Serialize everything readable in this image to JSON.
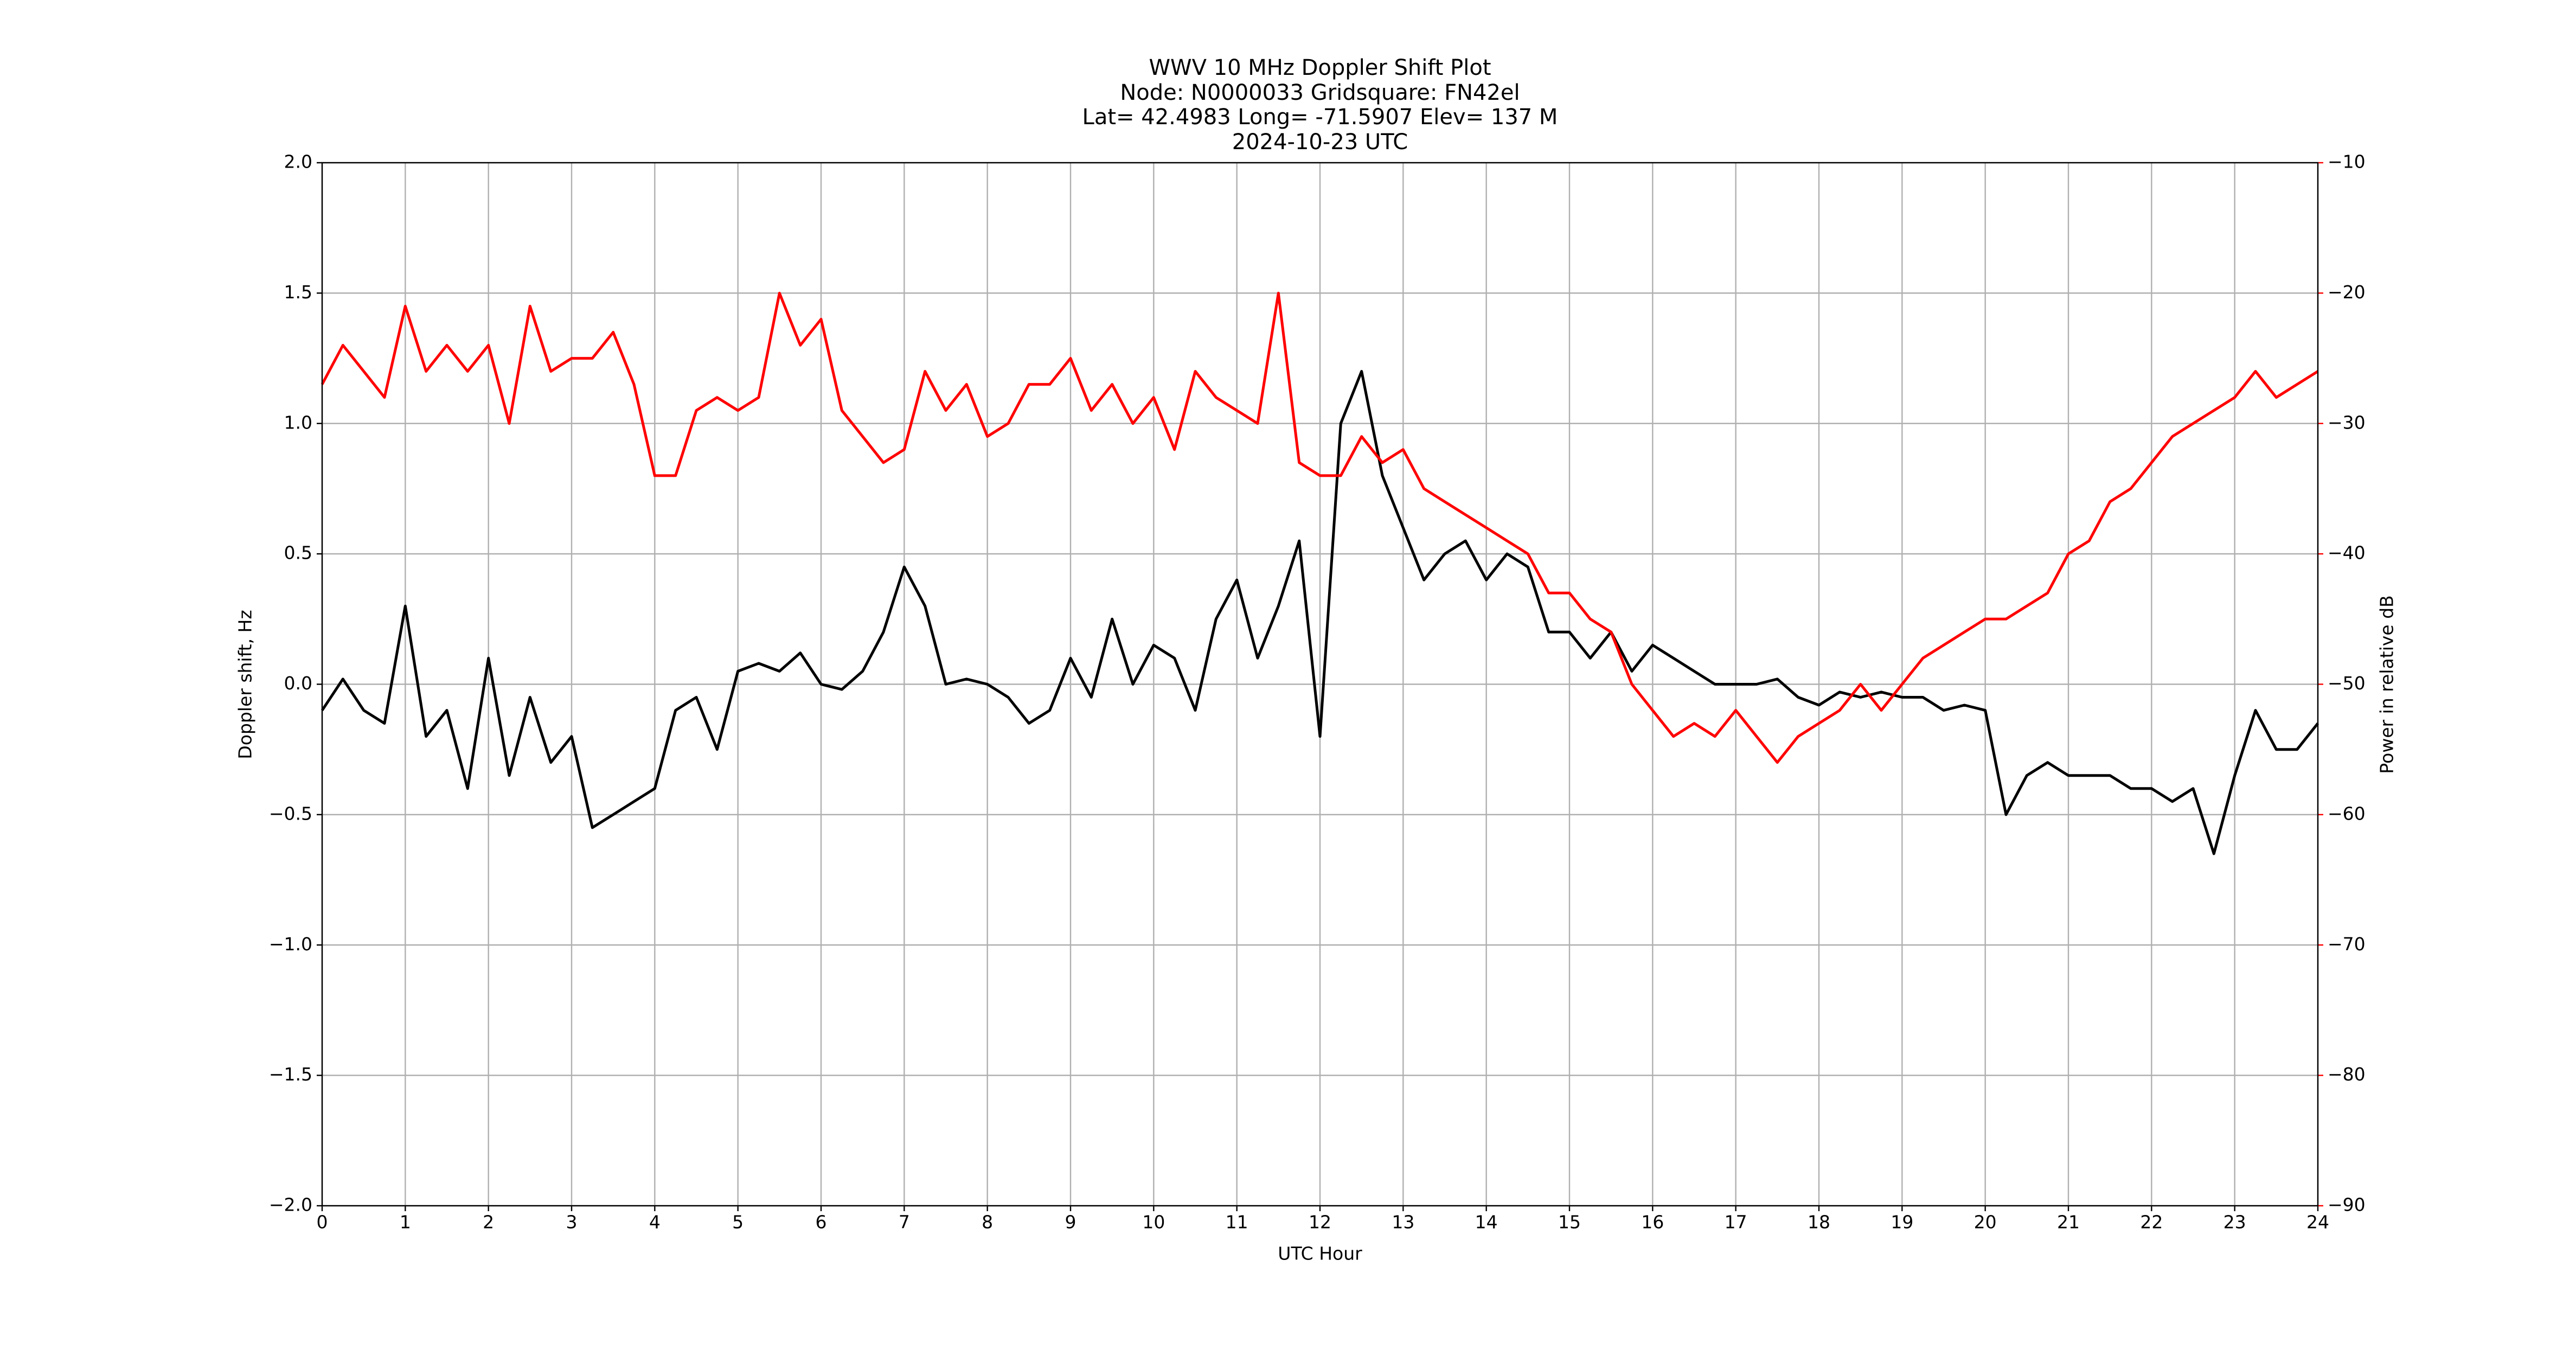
{
  "chart_data": {
    "type": "line",
    "title": [
      "WWV 10 MHz Doppler Shift Plot",
      "Node:  N0000033     Gridsquare:  FN42el",
      "Lat= 42.4983    Long= -71.5907    Elev= 137 M",
      "2024-10-23  UTC"
    ],
    "xlabel": "UTC Hour",
    "ylabel": "Doppler shift, Hz",
    "y2label": "Power in relative dB",
    "x": [
      0,
      0.25,
      0.5,
      0.75,
      1,
      1.25,
      1.5,
      1.75,
      2,
      2.25,
      2.5,
      2.75,
      3,
      3.25,
      3.5,
      3.75,
      4,
      4.25,
      4.5,
      4.75,
      5,
      5.25,
      5.5,
      5.75,
      6,
      6.25,
      6.5,
      6.75,
      7,
      7.25,
      7.5,
      7.75,
      8,
      8.25,
      8.5,
      8.75,
      9,
      9.25,
      9.5,
      9.75,
      10,
      10.25,
      10.5,
      10.75,
      11,
      11.25,
      11.5,
      11.75,
      12,
      12.25,
      12.5,
      12.75,
      13,
      13.25,
      13.5,
      13.75,
      14,
      14.25,
      14.5,
      14.75,
      15,
      15.25,
      15.5,
      15.75,
      16,
      16.25,
      16.5,
      16.75,
      17,
      17.25,
      17.5,
      17.75,
      18,
      18.25,
      18.5,
      18.75,
      19,
      19.25,
      19.5,
      19.75,
      20,
      20.25,
      20.5,
      20.75,
      21,
      21.25,
      21.5,
      21.75,
      22,
      22.25,
      22.5,
      22.75,
      23,
      23.25,
      23.5,
      23.75,
      24
    ],
    "series": [
      {
        "color": "#000000",
        "axis": "y",
        "values": [
          -0.1,
          0.02,
          -0.1,
          -0.15,
          0.3,
          -0.2,
          -0.1,
          -0.4,
          0.1,
          -0.35,
          -0.05,
          -0.3,
          -0.2,
          -0.55,
          -0.5,
          -0.45,
          -0.4,
          -0.1,
          -0.05,
          -0.25,
          0.05,
          0.08,
          0.05,
          0.12,
          0.0,
          -0.02,
          0.05,
          0.2,
          0.45,
          0.3,
          0.0,
          0.02,
          0.0,
          -0.05,
          -0.15,
          -0.1,
          0.1,
          -0.05,
          0.25,
          0.0,
          0.15,
          0.1,
          -0.1,
          0.25,
          0.4,
          0.1,
          0.3,
          0.55,
          -0.2,
          1.0,
          1.2,
          0.8,
          0.6,
          0.4,
          0.5,
          0.55,
          0.4,
          0.5,
          0.45,
          0.2,
          0.2,
          0.1,
          0.2,
          0.05,
          0.15,
          0.1,
          0.05,
          0.0,
          0.0,
          0.0,
          0.02,
          -0.05,
          -0.08,
          -0.03,
          -0.05,
          -0.03,
          -0.05,
          -0.05,
          -0.1,
          -0.08,
          -0.1,
          -0.5,
          -0.35,
          -0.3,
          -0.35,
          -0.35,
          -0.35,
          -0.4,
          -0.4,
          -0.45,
          -0.4,
          -0.65,
          -0.35,
          -0.1,
          -0.25,
          -0.25,
          -0.15
        ]
      },
      {
        "color": "#ff0000",
        "axis": "y2",
        "values": [
          -27,
          -24,
          -26,
          -28,
          -21,
          -26,
          -24,
          -26,
          -24,
          -30,
          -21,
          -26,
          -25,
          -25,
          -23,
          -27,
          -34,
          -34,
          -29,
          -28,
          -29,
          -28,
          -20,
          -24,
          -22,
          -29,
          -31,
          -33,
          -32,
          -26,
          -29,
          -27,
          -31,
          -30,
          -27,
          -27,
          -25,
          -29,
          -27,
          -30,
          -28,
          -32,
          -26,
          -28,
          -29,
          -30,
          -20,
          -33,
          -34,
          -34,
          -31,
          -33,
          -32,
          -35,
          -36,
          -37,
          -38,
          -39,
          -40,
          -43,
          -43,
          -45,
          -46,
          -50,
          -52,
          -54,
          -53,
          -54,
          -52,
          -54,
          -56,
          -54,
          -53,
          -52,
          -50,
          -52,
          -50,
          -48,
          -47,
          -46,
          -45,
          -45,
          -44,
          -43,
          -40,
          -39,
          -36,
          -35,
          -33,
          -31,
          -30,
          -29,
          -28,
          -26,
          -28,
          -27,
          -26
        ]
      }
    ],
    "xlim": [
      0,
      24
    ],
    "xticks": [
      0,
      1,
      2,
      3,
      4,
      5,
      6,
      7,
      8,
      9,
      10,
      11,
      12,
      13,
      14,
      15,
      16,
      17,
      18,
      19,
      20,
      21,
      22,
      23,
      24
    ],
    "ylim": [
      -2,
      2
    ],
    "yticks": [
      {
        "value": -2,
        "label": "−2.0"
      },
      {
        "value": -1.5,
        "label": "−1.5"
      },
      {
        "value": -1,
        "label": "−1.0"
      },
      {
        "value": -0.5,
        "label": "−0.5"
      },
      {
        "value": 0,
        "label": "0.0"
      },
      {
        "value": 0.5,
        "label": "0.5"
      },
      {
        "value": 1,
        "label": "1.0"
      },
      {
        "value": 1.5,
        "label": "1.5"
      },
      {
        "value": 2,
        "label": "2.0"
      }
    ],
    "y2lim": [
      -90,
      -10
    ],
    "y2ticks": [
      {
        "value": -90,
        "label": "−90"
      },
      {
        "value": -80,
        "label": "−80"
      },
      {
        "value": -70,
        "label": "−70"
      },
      {
        "value": -60,
        "label": "−60"
      },
      {
        "value": -50,
        "label": "−50"
      },
      {
        "value": -40,
        "label": "−40"
      },
      {
        "value": -30,
        "label": "−30"
      },
      {
        "value": -20,
        "label": "−20"
      },
      {
        "value": -10,
        "label": "−10"
      }
    ],
    "y2color": "#ff0000",
    "grid": true
  }
}
